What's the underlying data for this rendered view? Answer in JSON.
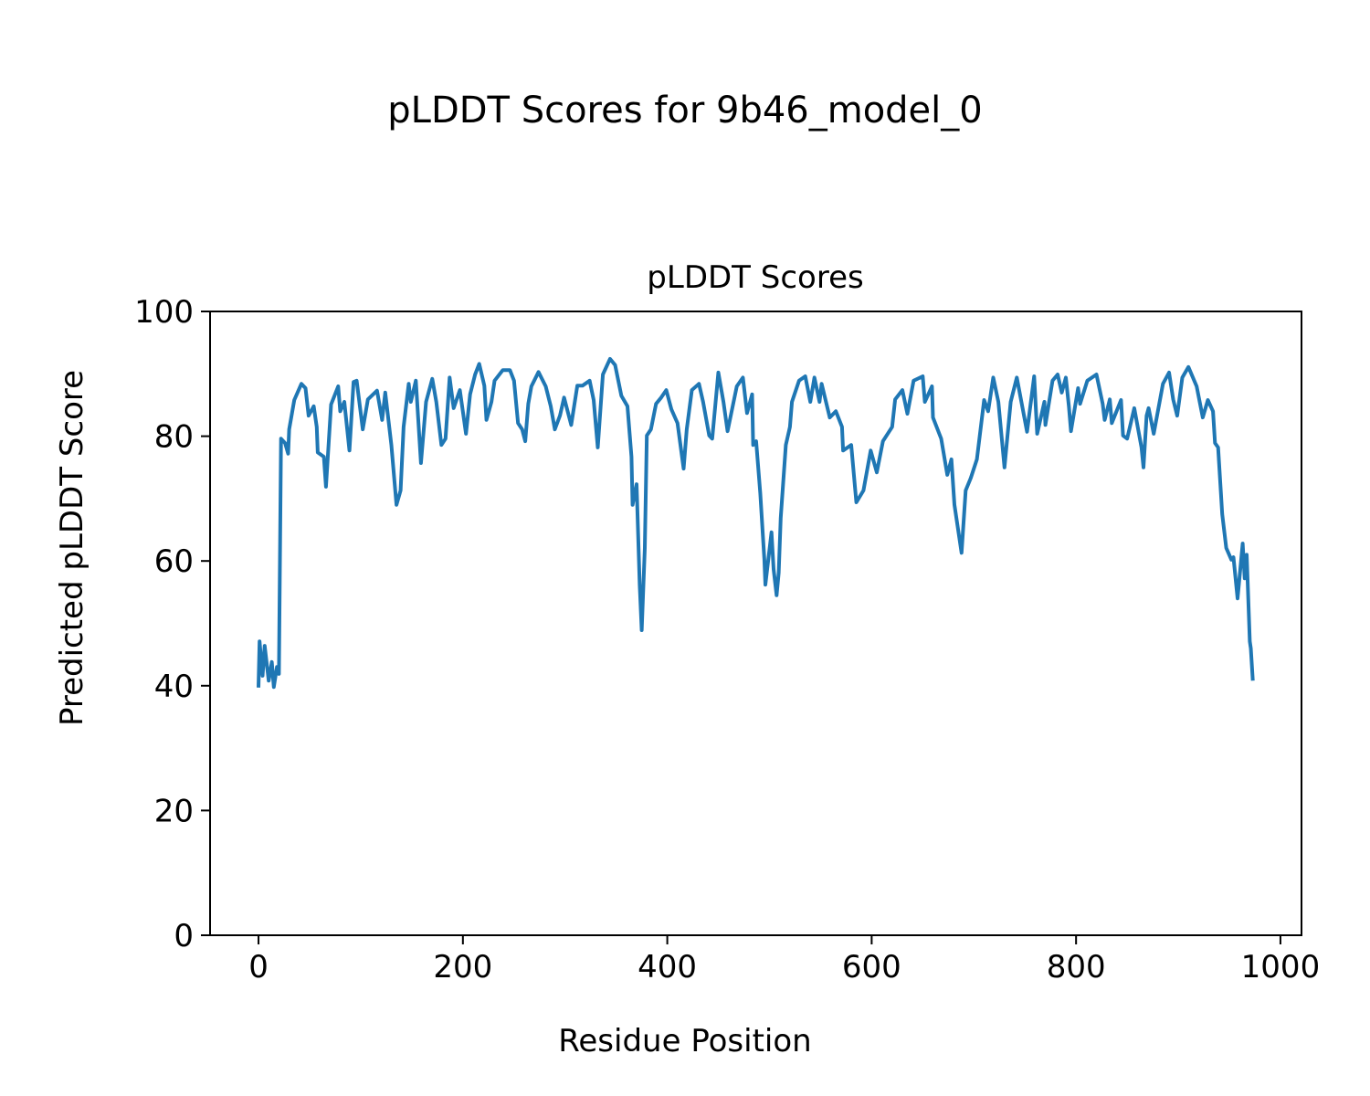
{
  "figure_title": "pLDDT Scores for 9b46_model_0",
  "chart_data": {
    "type": "line",
    "title": "pLDDT Scores",
    "xlabel": "Residue Position",
    "ylabel": "Predicted pLDDT Score",
    "xlim": [
      -47.4,
      1020.6
    ],
    "ylim": [
      0,
      100
    ],
    "xticks": [
      0,
      200,
      400,
      600,
      800,
      1000
    ],
    "xtick_labels": [
      "0",
      "200",
      "400",
      "600",
      "800",
      "1000"
    ],
    "yticks": [
      0,
      20,
      40,
      60,
      80,
      100
    ],
    "ytick_labels": [
      "0",
      "20",
      "40",
      "60",
      "80",
      "100"
    ],
    "grid": false,
    "series": [
      {
        "name": "pLDDT",
        "color": "#1f77b4",
        "x": [
          0,
          1,
          4,
          6,
          10,
          13,
          15,
          18,
          20,
          22,
          26,
          29,
          30,
          35,
          42,
          46,
          49,
          54,
          57,
          58,
          64,
          66,
          71,
          78,
          80,
          84,
          89,
          93,
          96,
          102,
          107,
          116,
          121,
          124,
          130,
          135,
          139,
          142,
          147,
          149,
          154,
          159,
          164,
          170,
          174,
          179,
          183,
          187,
          191,
          197,
          203,
          207,
          212,
          216,
          221,
          223,
          228,
          231,
          239,
          246,
          250,
          254,
          258,
          261,
          264,
          267,
          274,
          281,
          286,
          290,
          295,
          299,
          306,
          312,
          317,
          324,
          328,
          332,
          337,
          344,
          349,
          355,
          361,
          365,
          366,
          370,
          373,
          375,
          378,
          380,
          384,
          389,
          394,
          399,
          404,
          410,
          416,
          419,
          424,
          431,
          435,
          441,
          444,
          450,
          455,
          459,
          468,
          474,
          478,
          483,
          484,
          487,
          491,
          495,
          496,
          502,
          504,
          507,
          509,
          511,
          516,
          520,
          522,
          529,
          535,
          540,
          544,
          549,
          551,
          559,
          565,
          571,
          572,
          580,
          585,
          592,
          599,
          605,
          611,
          620,
          623,
          630,
          635,
          641,
          650,
          652,
          659,
          660,
          668,
          674,
          678,
          681,
          688,
          692,
          697,
          703,
          710,
          714,
          719,
          724,
          730,
          736,
          742,
          752,
          759,
          762,
          769,
          770,
          777,
          782,
          786,
          790,
          793,
          795,
          802,
          804,
          811,
          820,
          826,
          828,
          833,
          835,
          844,
          846,
          850,
          857,
          864,
          866,
          869,
          871,
          876,
          885,
          891,
          895,
          899,
          904,
          910,
          918,
          924,
          929,
          934,
          936,
          939,
          943,
          947,
          952,
          954,
          958,
          963,
          965,
          967,
          970,
          971,
          973
        ],
        "y": [
          39.7,
          47.1,
          41.6,
          46.4,
          40.8,
          43.8,
          39.8,
          43.0,
          41.9,
          79.6,
          78.9,
          77.2,
          81.1,
          85.8,
          88.4,
          87.7,
          83.3,
          84.8,
          81.5,
          77.4,
          76.7,
          71.9,
          85.1,
          88.0,
          84.0,
          85.5,
          77.7,
          88.7,
          88.9,
          81.1,
          85.9,
          87.3,
          82.6,
          87.0,
          78.6,
          69.0,
          71.3,
          81.5,
          88.4,
          85.5,
          88.9,
          75.7,
          85.5,
          89.2,
          85.5,
          78.6,
          79.6,
          89.4,
          84.5,
          87.4,
          80.4,
          86.7,
          89.9,
          91.6,
          88.1,
          82.6,
          85.5,
          88.9,
          90.6,
          90.6,
          88.9,
          82.1,
          81.1,
          79.2,
          85.2,
          88.0,
          90.3,
          88.0,
          84.8,
          81.1,
          83.3,
          86.2,
          81.8,
          88.1,
          88.1,
          88.9,
          85.8,
          78.2,
          89.9,
          92.4,
          91.4,
          86.5,
          84.8,
          76.7,
          69.0,
          72.3,
          56.2,
          48.9,
          62.1,
          80.1,
          81.1,
          85.2,
          86.2,
          87.4,
          84.3,
          82.1,
          74.8,
          81.1,
          87.4,
          88.4,
          85.5,
          80.1,
          79.6,
          90.2,
          85.5,
          80.8,
          88.0,
          89.4,
          83.7,
          86.7,
          78.6,
          79.2,
          70.9,
          60.2,
          56.2,
          64.6,
          58.7,
          54.5,
          58.1,
          66.9,
          78.6,
          81.5,
          85.5,
          88.9,
          89.6,
          85.5,
          89.4,
          85.5,
          88.4,
          83.0,
          84.0,
          81.5,
          77.7,
          78.6,
          69.4,
          71.3,
          77.7,
          74.2,
          79.2,
          81.5,
          85.9,
          87.4,
          83.6,
          88.9,
          89.6,
          85.5,
          88.0,
          83.0,
          79.6,
          73.8,
          76.3,
          69.0,
          61.3,
          71.3,
          73.3,
          76.3,
          85.8,
          84.0,
          89.4,
          85.5,
          75.0,
          85.5,
          89.4,
          80.7,
          89.6,
          80.4,
          85.5,
          81.8,
          88.9,
          89.9,
          87.0,
          89.4,
          84.8,
          80.8,
          87.7,
          85.2,
          88.9,
          89.9,
          85.2,
          82.6,
          85.9,
          82.1,
          85.8,
          80.1,
          79.6,
          84.5,
          78.2,
          75.0,
          83.3,
          84.5,
          80.4,
          88.4,
          90.2,
          85.9,
          83.3,
          89.4,
          91.1,
          88.0,
          83.0,
          85.8,
          84.0,
          78.9,
          78.2,
          67.5,
          62.1,
          60.2,
          60.6,
          54.0,
          62.8,
          57.2,
          61.0,
          47.1,
          46.0,
          40.8
        ]
      }
    ]
  }
}
